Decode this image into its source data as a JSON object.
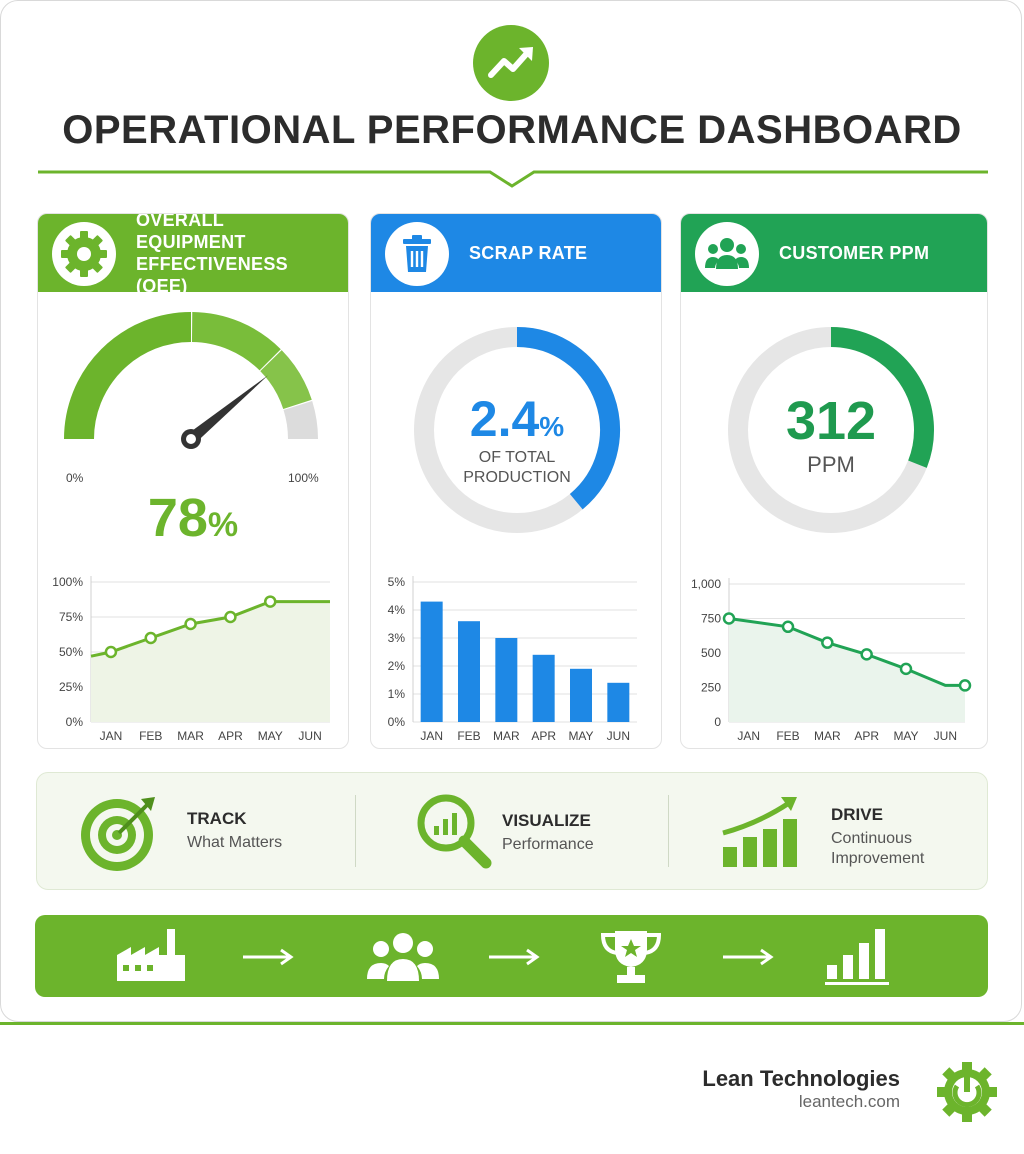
{
  "header": {
    "title": "OPERATIONAL PERFORMANCE DASHBOARD",
    "icon": "trend-up-icon"
  },
  "colors": {
    "green": "#6cb42c",
    "blue": "#1e88e5",
    "teal_green": "#21a355",
    "gray": "#e6e6e6"
  },
  "cards": {
    "oee": {
      "title_line1": "OVERALL EQUIPMENT",
      "title_line2": "EFFECTIVENESS (OEE)",
      "icon": "gear-icon",
      "value": "78",
      "unit": "%",
      "gauge_min_label": "0%",
      "gauge_max_label": "100%"
    },
    "scrap": {
      "title": "SCRAP RATE",
      "icon": "trash-bin-icon",
      "value": "2.4",
      "unit": "%",
      "caption_line1": "OF TOTAL",
      "caption_line2": "PRODUCTION"
    },
    "ppm": {
      "title": "CUSTOMER PPM",
      "icon": "people-group-icon",
      "value": "312",
      "caption": "PPM"
    }
  },
  "chart_data": [
    {
      "type": "pie",
      "id": "oee-gauge",
      "value_percent": 78,
      "range": [
        0,
        100
      ]
    },
    {
      "type": "pie",
      "id": "scrap-ring",
      "value_percent": 2.4
    },
    {
      "type": "pie",
      "id": "ppm-ring",
      "value": 312
    },
    {
      "type": "area",
      "id": "oee-trend",
      "categories": [
        "JAN",
        "FEB",
        "MAR",
        "APR",
        "MAY",
        "JUN"
      ],
      "values": [
        50,
        60,
        70,
        75,
        86,
        86
      ],
      "start_value": 47,
      "yticks": [
        "0%",
        "25%",
        "50%",
        "75%",
        "100%"
      ],
      "ylim": [
        0,
        100
      ],
      "grid": true
    },
    {
      "type": "bar",
      "id": "scrap-trend",
      "categories": [
        "JAN",
        "FEB",
        "MAR",
        "APR",
        "MAY",
        "JUN"
      ],
      "values": [
        4.3,
        3.6,
        3.0,
        2.4,
        1.9,
        1.4
      ],
      "yticks": [
        "0%",
        "1%",
        "2%",
        "3%",
        "4%",
        "5%"
      ],
      "ylim": [
        0,
        5
      ],
      "grid": true
    },
    {
      "type": "area",
      "id": "ppm-trend",
      "categories": [
        "JAN",
        "FEB",
        "MAR",
        "APR",
        "MAY",
        "JUN"
      ],
      "values": [
        750,
        690,
        575,
        490,
        385,
        265
      ],
      "yticks": [
        "0",
        "250",
        "500",
        "750",
        "1,000"
      ],
      "ylim": [
        0,
        1000
      ],
      "grid": true
    }
  ],
  "strip": {
    "items": [
      {
        "head": "TRACK",
        "sub": "What Matters",
        "icon": "target-icon"
      },
      {
        "head": "VISUALIZE",
        "sub": "Performance",
        "icon": "magnifier-chart-icon"
      },
      {
        "head": "DRIVE",
        "sub_line1": "Continuous",
        "sub_line2": "Improvement",
        "icon": "growth-bars-icon"
      }
    ]
  },
  "flow": {
    "icons": [
      "factory-icon",
      "team-icon",
      "trophy-icon",
      "bar-chart-icon"
    ]
  },
  "brand": {
    "name": "Lean Technologies",
    "url": "leantech.com",
    "icon": "power-gear-logo-icon"
  }
}
